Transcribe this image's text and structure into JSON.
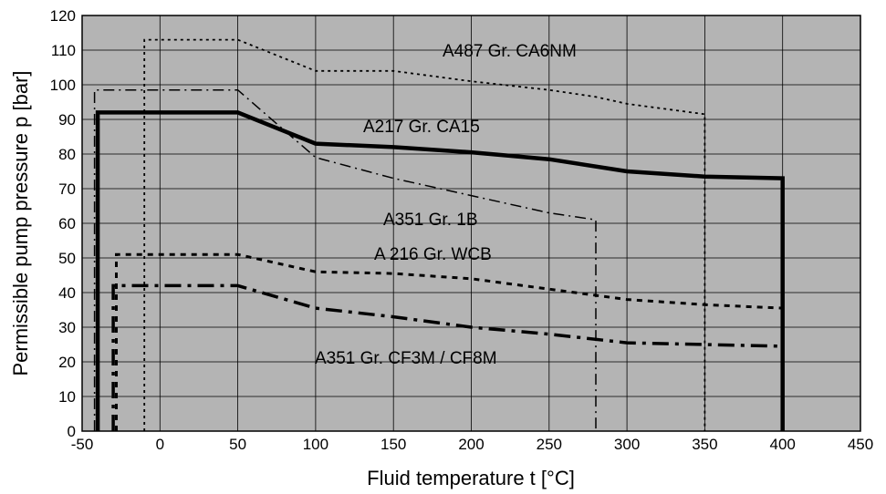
{
  "chart_data": {
    "type": "line",
    "title": "",
    "xlabel": "Fluid temperature  t [°C]",
    "ylabel": "Permissible pump pressure     p [bar]",
    "xlim": [
      -50,
      450
    ],
    "ylim": [
      0,
      120
    ],
    "x_ticks": [
      -50,
      0,
      50,
      100,
      150,
      200,
      250,
      300,
      350,
      400,
      450
    ],
    "y_ticks": [
      0,
      10,
      20,
      30,
      40,
      50,
      60,
      70,
      80,
      90,
      100,
      110,
      120
    ],
    "grid": true,
    "plot_background": "#b4b4b4",
    "series": [
      {
        "name": "A487 Gr. CA6NM",
        "style": "dotted",
        "label_at": [
          485,
          55
        ],
        "x": [
          -10,
          -10,
          50,
          100,
          150,
          200,
          250,
          280,
          300,
          350,
          350
        ],
        "y": [
          0,
          113,
          113,
          104,
          104,
          101,
          98.5,
          96.5,
          94.5,
          91.5,
          0
        ]
      },
      {
        "name": "A217 Gr. CA15",
        "style": "thick-solid",
        "label_at": [
          398,
          138
        ],
        "x": [
          -40,
          -40,
          50,
          100,
          150,
          200,
          250,
          300,
          350,
          400,
          400
        ],
        "y": [
          0,
          92,
          92,
          83,
          82,
          80.5,
          78.5,
          75,
          73.5,
          73,
          0
        ]
      },
      {
        "name": "A351 Gr. 1B",
        "style": "dash-dot",
        "label_at": [
          420,
          240
        ],
        "x": [
          -42,
          -42,
          50,
          100,
          150,
          200,
          250,
          280,
          280
        ],
        "y": [
          0,
          98.5,
          98.5,
          79,
          73,
          68,
          63,
          61,
          0
        ]
      },
      {
        "name": "A 216 Gr. WCB",
        "style": "short-dash",
        "label_at": [
          410,
          278
        ],
        "x": [
          -28,
          -28,
          50,
          100,
          150,
          200,
          250,
          300,
          350,
          400
        ],
        "y": [
          0,
          51,
          51,
          46,
          45.5,
          44,
          41,
          38,
          36.5,
          35.5
        ]
      },
      {
        "name": "A351 Gr. CF3M / CF8M",
        "style": "long-dash-dot",
        "label_at": [
          345,
          392
        ],
        "x": [
          -30,
          -30,
          50,
          100,
          150,
          200,
          250,
          300,
          350,
          400
        ],
        "y": [
          0,
          42,
          42,
          35.5,
          33,
          30,
          28,
          25.5,
          25,
          24.5
        ]
      }
    ]
  }
}
